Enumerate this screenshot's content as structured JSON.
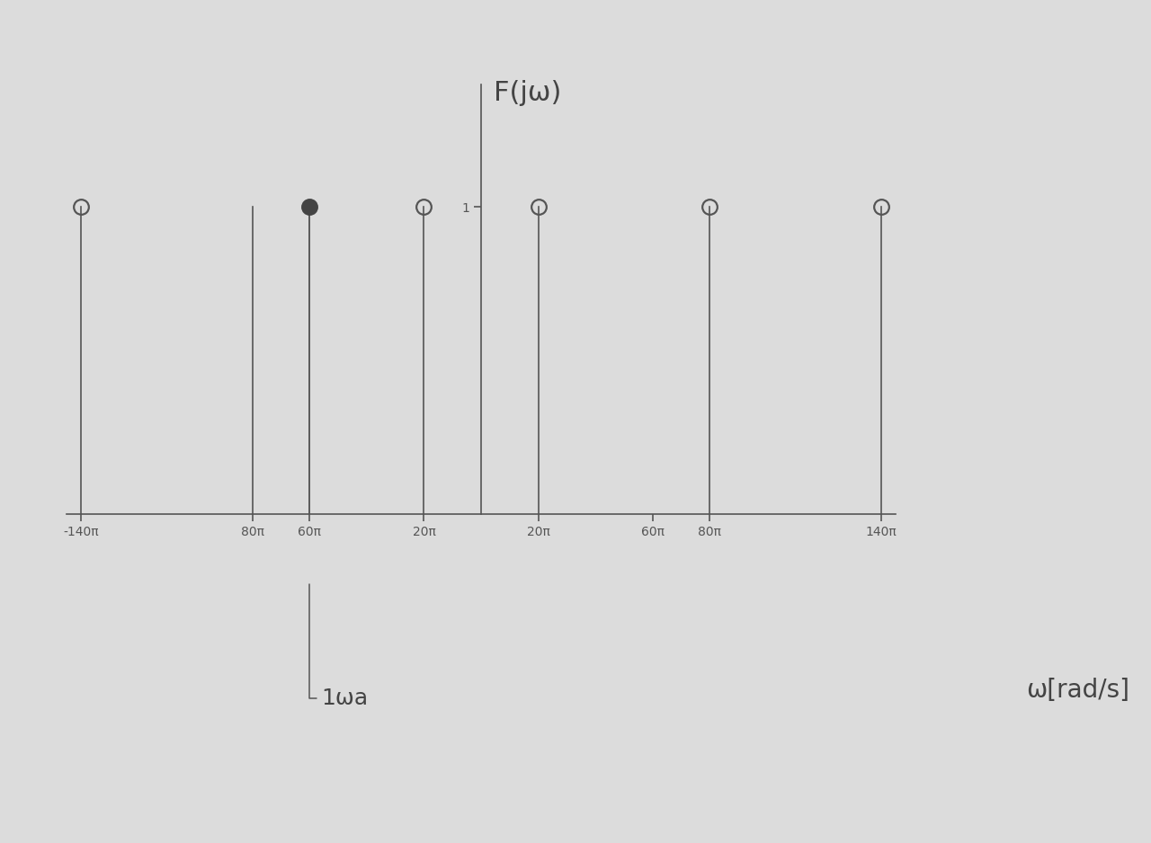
{
  "chart_data": {
    "type": "stem",
    "y_label": "F(jω)",
    "x_label": "ω[rad/s]",
    "annotation": {
      "text": "1ωa",
      "x": -60
    },
    "series": [
      {
        "x": [
          -140,
          -20,
          20,
          80,
          140
        ],
        "values": [
          1,
          1,
          1,
          1,
          1
        ],
        "marker": "circle",
        "color": "#555555"
      },
      {
        "x": [
          -60
        ],
        "values": [
          1
        ],
        "marker": "filled_circle",
        "color": "#444444"
      },
      {
        "x": [
          -80
        ],
        "values": [
          1
        ],
        "marker": "none",
        "color": "#555555"
      }
    ],
    "xlim": [
      -145,
      145
    ],
    "ylim": [
      0,
      1.4
    ],
    "xticks": [
      {
        "value": -140,
        "label": "-140π"
      },
      {
        "value": -80,
        "label": "80π"
      },
      {
        "value": -60,
        "label": "60π"
      },
      {
        "value": -20,
        "label": "20π"
      },
      {
        "value": 20,
        "label": "20π"
      },
      {
        "value": 60,
        "label": "60π"
      },
      {
        "value": 80,
        "label": "80π"
      },
      {
        "value": 140,
        "label": "140π"
      }
    ],
    "yticks": [
      1
    ],
    "grid": false
  }
}
